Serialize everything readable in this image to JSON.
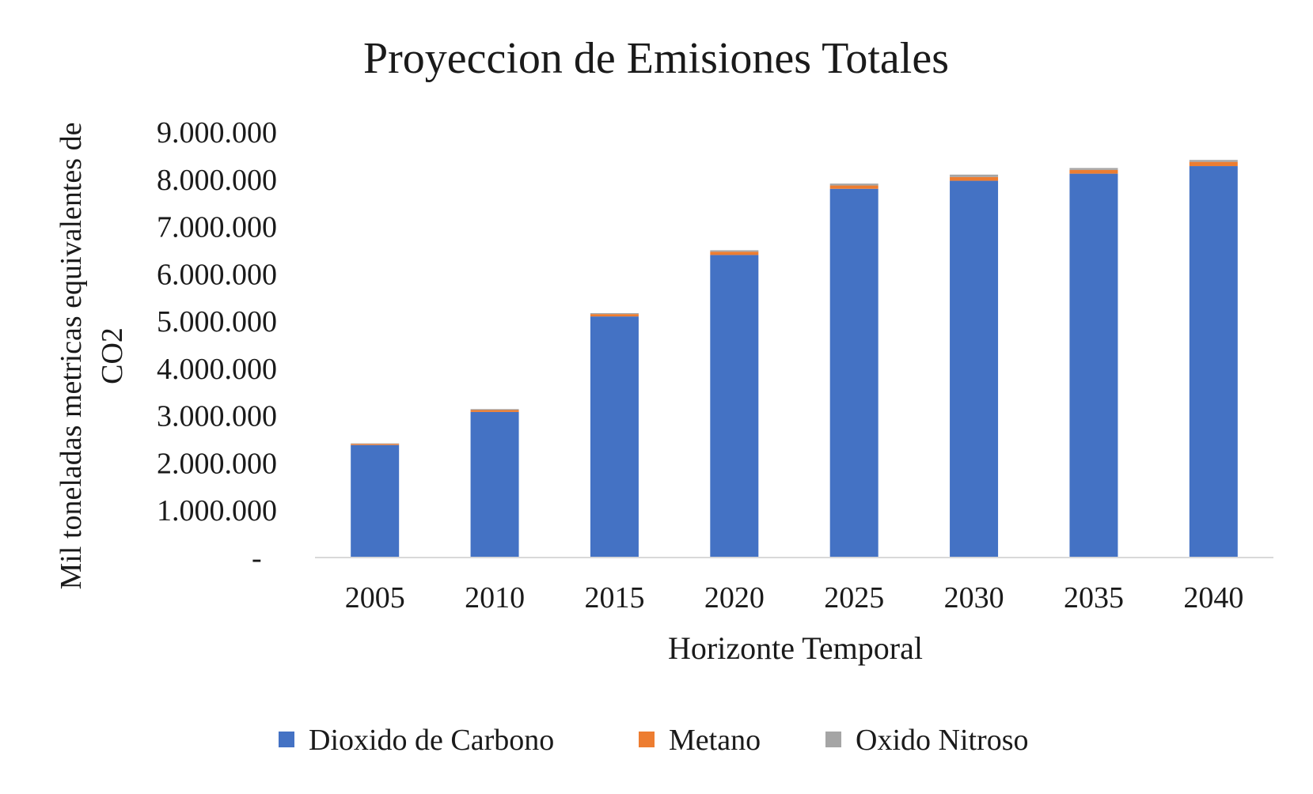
{
  "chart_data": {
    "type": "bar",
    "stacked": true,
    "title": "Proyeccion de Emisiones Totales",
    "xlabel": "Horizonte Temporal",
    "ylabel_lines": [
      "Mil toneladas metricas equivalentes de",
      "CO2"
    ],
    "categories": [
      "2005",
      "2010",
      "2015",
      "2020",
      "2025",
      "2030",
      "2035",
      "2040"
    ],
    "series": [
      {
        "name": "Dioxido de Carbono",
        "color": "#4472C4",
        "values": [
          2380000,
          3080000,
          5100000,
          6400000,
          7800000,
          7970000,
          8120000,
          8280000
        ]
      },
      {
        "name": "Metano",
        "color": "#ED7D31",
        "values": [
          25000,
          40000,
          50000,
          70000,
          70000,
          80000,
          80000,
          90000
        ]
      },
      {
        "name": "Oxido Nitroso",
        "color": "#A5A5A5",
        "values": [
          10000,
          20000,
          20000,
          30000,
          40000,
          50000,
          40000,
          40000
        ]
      }
    ],
    "ylim": [
      0,
      9000000
    ],
    "yticks": [
      0,
      1000000,
      2000000,
      3000000,
      4000000,
      5000000,
      6000000,
      7000000,
      8000000,
      9000000
    ],
    "ytick_labels": [
      "-",
      "1.000.000",
      "2.000.000",
      "3.000.000",
      "4.000.000",
      "5.000.000",
      "6.000.000",
      "7.000.000",
      "8.000.000",
      "9.000.000"
    ],
    "grid": false,
    "legend_position": "bottom"
  }
}
